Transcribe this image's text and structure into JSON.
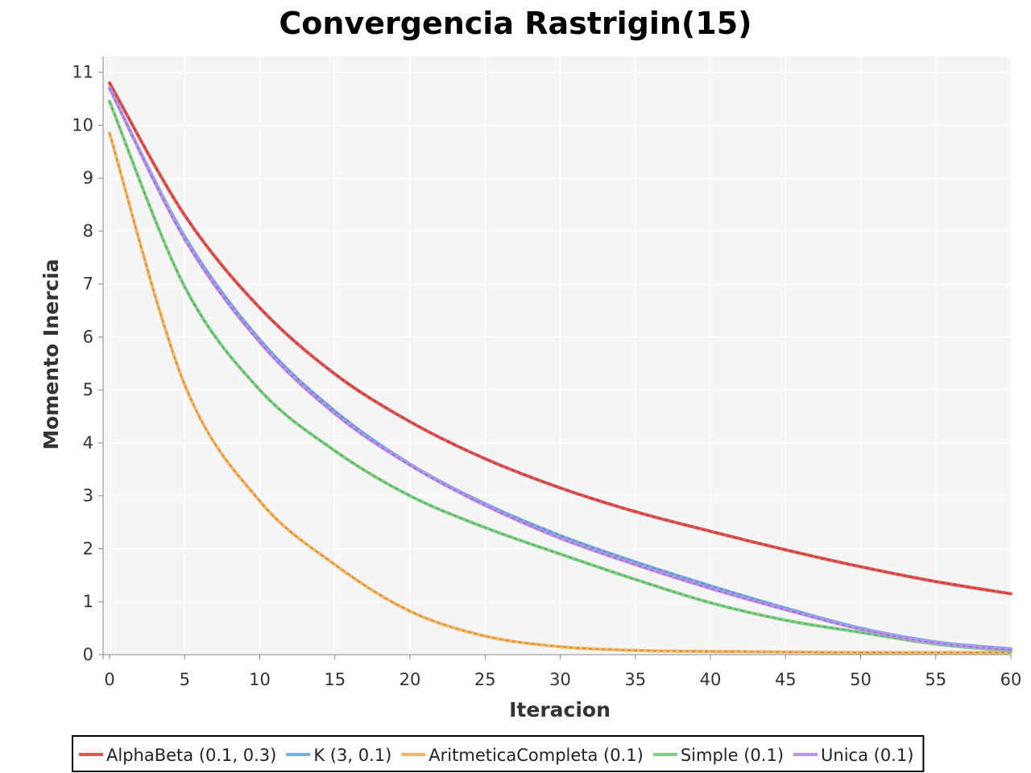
{
  "chart_data": {
    "type": "line",
    "title": "Convergencia Rastrigin(15)",
    "xlabel": "Iteracion",
    "ylabel": "Momento Inercia",
    "xlim": [
      0,
      60
    ],
    "ylim": [
      0,
      11.3
    ],
    "xticks": [
      0,
      5,
      10,
      15,
      20,
      25,
      30,
      35,
      40,
      45,
      50,
      55,
      60
    ],
    "yticks": [
      0,
      1,
      2,
      3,
      4,
      5,
      6,
      7,
      8,
      9,
      10,
      11
    ],
    "grid": true,
    "legend_position": "bottom",
    "colors": {
      "plot_background": "#f5f5f5",
      "grid": "#ffffff"
    },
    "x": [
      0,
      5,
      10,
      15,
      20,
      25,
      30,
      35,
      40,
      45,
      50,
      55,
      60
    ],
    "series": [
      {
        "name": "AlphaBeta (0.1, 0.3)",
        "color": "#e35454",
        "values": [
          10.8,
          8.3,
          6.55,
          5.3,
          4.4,
          3.7,
          3.15,
          2.7,
          2.33,
          1.98,
          1.66,
          1.38,
          1.15
        ]
      },
      {
        "name": "K (3, 0.1)",
        "color": "#7aaee6",
        "values": [
          10.7,
          7.9,
          5.95,
          4.6,
          3.6,
          2.85,
          2.25,
          1.75,
          1.3,
          0.88,
          0.5,
          0.24,
          0.11
        ]
      },
      {
        "name": "AritmeticaCompleta (0.1)",
        "color": "#f5b763",
        "values": [
          9.85,
          5.1,
          2.9,
          1.7,
          0.82,
          0.35,
          0.15,
          0.08,
          0.06,
          0.05,
          0.04,
          0.04,
          0.04
        ]
      },
      {
        "name": "Simple (0.1)",
        "color": "#7fcf85",
        "values": [
          10.45,
          6.95,
          5.0,
          3.85,
          3.0,
          2.4,
          1.9,
          1.42,
          0.98,
          0.65,
          0.42,
          0.2,
          0.07
        ]
      },
      {
        "name": "Unica (0.1)",
        "color": "#bb93ee",
        "values": [
          10.7,
          7.85,
          5.9,
          4.55,
          3.58,
          2.82,
          2.2,
          1.7,
          1.25,
          0.85,
          0.48,
          0.22,
          0.09
        ]
      }
    ]
  }
}
